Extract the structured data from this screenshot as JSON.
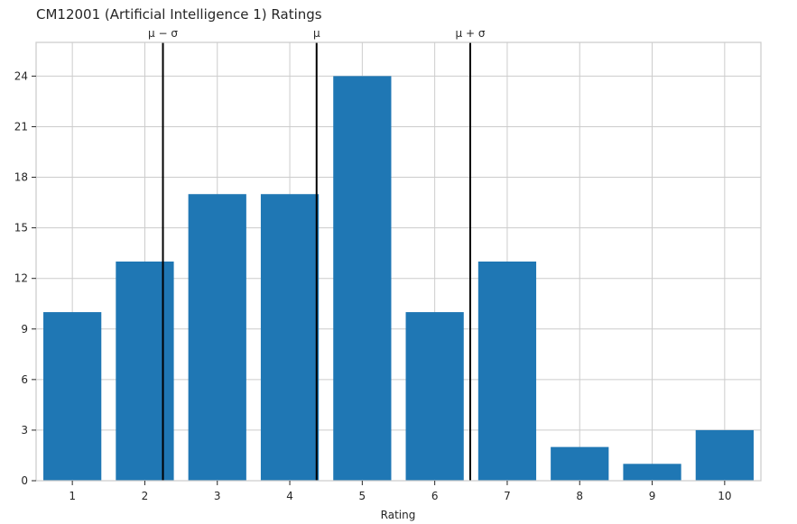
{
  "chart_data": {
    "type": "bar",
    "title": "CM12001 (Artificial Intelligence 1) Ratings",
    "xlabel": "Rating",
    "ylabel": "",
    "categories": [
      "1",
      "2",
      "3",
      "4",
      "5",
      "6",
      "7",
      "8",
      "9",
      "10"
    ],
    "values": [
      10,
      13,
      17,
      17,
      24,
      10,
      13,
      2,
      1,
      3
    ],
    "ylim": [
      0,
      26
    ],
    "yticks": [
      0,
      3,
      6,
      9,
      12,
      15,
      18,
      21,
      24
    ],
    "grid": true,
    "bar_color": "#1f77b4",
    "reference_lines": [
      {
        "label": "μ − σ",
        "x": 2.25
      },
      {
        "label": "μ",
        "x": 4.37
      },
      {
        "label": "μ + σ",
        "x": 6.49
      }
    ]
  }
}
